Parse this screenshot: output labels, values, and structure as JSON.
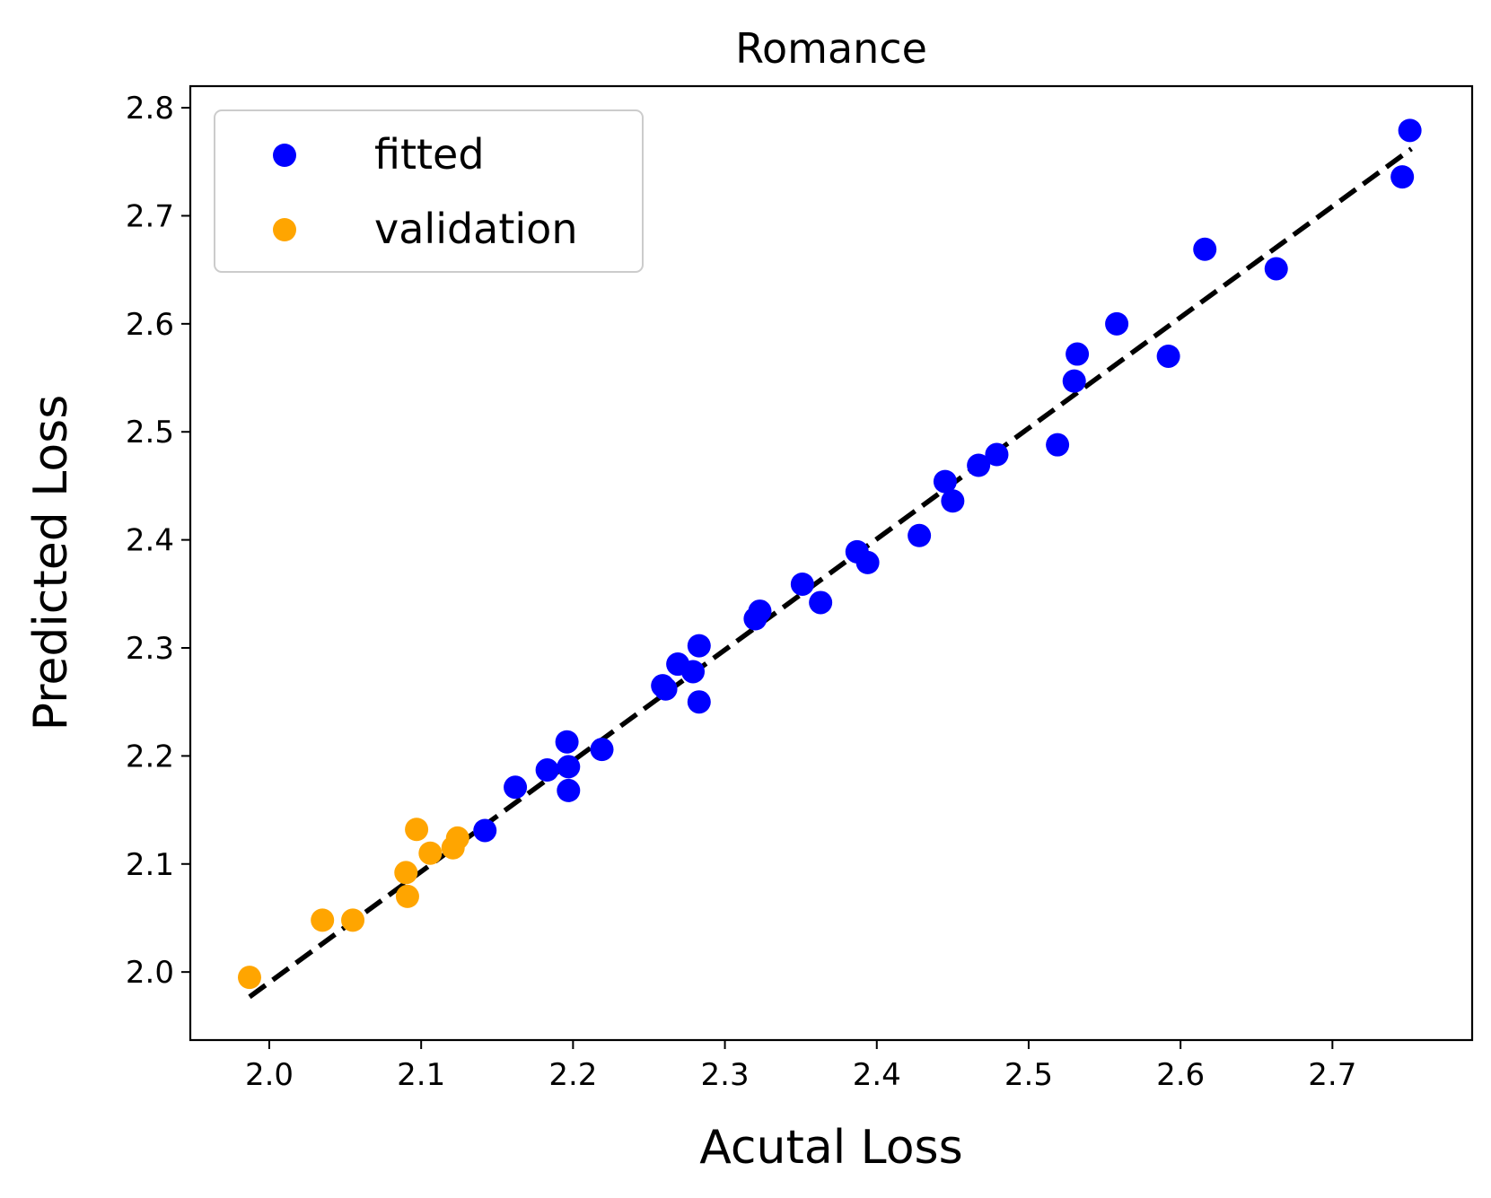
{
  "chart_data": {
    "type": "scatter",
    "title": "Romance",
    "xlabel": "Acutal Loss",
    "ylabel": "Predicted Loss",
    "xlim": [
      1.948,
      2.792
    ],
    "ylim": [
      1.937,
      2.82
    ],
    "xticks": [
      2.0,
      2.1,
      2.2,
      2.3,
      2.4,
      2.5,
      2.6,
      2.7
    ],
    "yticks": [
      2.0,
      2.1,
      2.2,
      2.3,
      2.4,
      2.5,
      2.6,
      2.7,
      2.8
    ],
    "xtick_labels": [
      "2.0",
      "2.1",
      "2.2",
      "2.3",
      "2.4",
      "2.5",
      "2.6",
      "2.7"
    ],
    "ytick_labels": [
      "2.0",
      "2.1",
      "2.2",
      "2.3",
      "2.4",
      "2.5",
      "2.6",
      "2.7",
      "2.8"
    ],
    "grid": false,
    "legend": {
      "position": "top-left"
    },
    "reference_line": {
      "style": "dashed",
      "color": "#000000",
      "x": [
        1.987,
        2.752
      ],
      "y": [
        1.977,
        2.762
      ]
    },
    "series": [
      {
        "name": "fitted",
        "color": "#0000ff",
        "points": [
          [
            2.142,
            2.131
          ],
          [
            2.162,
            2.171
          ],
          [
            2.183,
            2.187
          ],
          [
            2.196,
            2.213
          ],
          [
            2.197,
            2.19
          ],
          [
            2.197,
            2.168
          ],
          [
            2.219,
            2.206
          ],
          [
            2.259,
            2.265
          ],
          [
            2.261,
            2.262
          ],
          [
            2.269,
            2.285
          ],
          [
            2.279,
            2.278
          ],
          [
            2.283,
            2.302
          ],
          [
            2.283,
            2.25
          ],
          [
            2.32,
            2.327
          ],
          [
            2.323,
            2.334
          ],
          [
            2.351,
            2.359
          ],
          [
            2.363,
            2.342
          ],
          [
            2.387,
            2.389
          ],
          [
            2.394,
            2.379
          ],
          [
            2.428,
            2.404
          ],
          [
            2.445,
            2.454
          ],
          [
            2.45,
            2.436
          ],
          [
            2.467,
            2.469
          ],
          [
            2.479,
            2.479
          ],
          [
            2.519,
            2.488
          ],
          [
            2.53,
            2.547
          ],
          [
            2.532,
            2.572
          ],
          [
            2.558,
            2.6
          ],
          [
            2.592,
            2.57
          ],
          [
            2.616,
            2.669
          ],
          [
            2.663,
            2.651
          ],
          [
            2.746,
            2.736
          ],
          [
            2.751,
            2.779
          ]
        ]
      },
      {
        "name": "validation",
        "color": "#ffa500",
        "points": [
          [
            1.987,
            1.995
          ],
          [
            2.035,
            2.048
          ],
          [
            2.055,
            2.048
          ],
          [
            2.09,
            2.092
          ],
          [
            2.091,
            2.07
          ],
          [
            2.097,
            2.132
          ],
          [
            2.106,
            2.11
          ],
          [
            2.121,
            2.115
          ],
          [
            2.124,
            2.124
          ]
        ]
      }
    ]
  }
}
